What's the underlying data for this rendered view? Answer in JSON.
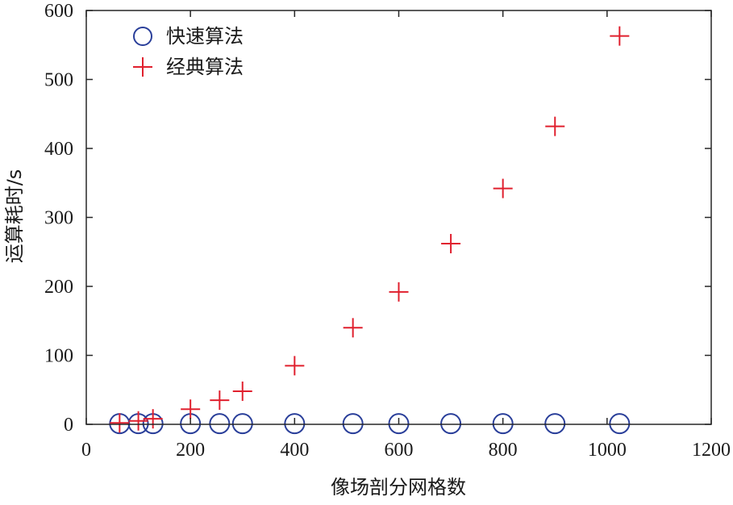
{
  "chart_data": {
    "type": "scatter",
    "xlabel": "像场剖分网格数",
    "ylabel": "运算耗时/s",
    "xlim": [
      0,
      1200
    ],
    "ylim": [
      0,
      600
    ],
    "xticks": [
      0,
      200,
      400,
      600,
      800,
      1000,
      1200
    ],
    "yticks": [
      0,
      100,
      200,
      300,
      400,
      500,
      600
    ],
    "xtick_labels": [
      "0",
      "200",
      "400",
      "600",
      "800",
      "1000",
      "1200"
    ],
    "ytick_labels": [
      "0",
      "100",
      "200",
      "300",
      "400",
      "500",
      "600"
    ],
    "grid": false,
    "legend_position": "top-left",
    "series": [
      {
        "name": "快速算法",
        "marker": "circle",
        "color": "#2a3f9a",
        "x": [
          64,
          100,
          128,
          200,
          256,
          300,
          400,
          512,
          600,
          700,
          800,
          900,
          1024
        ],
        "y": [
          1,
          1,
          1,
          1,
          1,
          1,
          1,
          1,
          1,
          1,
          1,
          1,
          1
        ]
      },
      {
        "name": "经典算法",
        "marker": "plus",
        "color": "#e0202e",
        "x": [
          64,
          100,
          128,
          200,
          256,
          300,
          400,
          512,
          600,
          700,
          800,
          900,
          1024
        ],
        "y": [
          2,
          5,
          8,
          22,
          35,
          48,
          85,
          140,
          192,
          262,
          342,
          432,
          563
        ]
      }
    ]
  }
}
